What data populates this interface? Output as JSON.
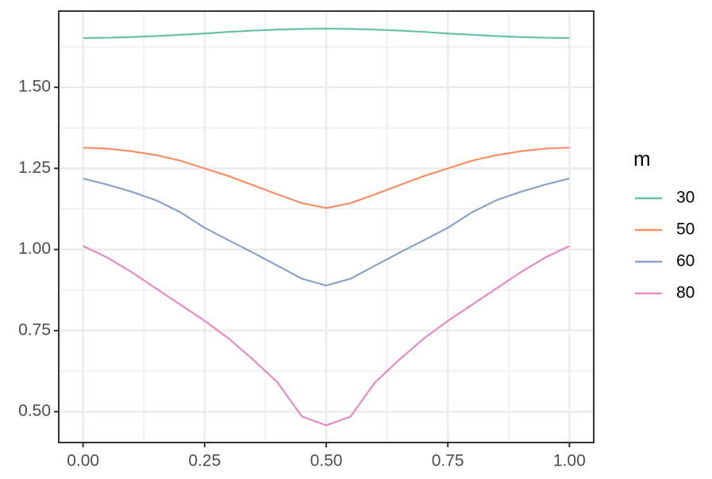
{
  "chart_data": {
    "type": "line",
    "x": [
      0,
      0.05,
      0.1,
      0.15,
      0.2,
      0.25,
      0.3,
      0.35,
      0.4,
      0.45,
      0.5,
      0.55,
      0.6,
      0.65,
      0.7,
      0.75,
      0.8,
      0.85,
      0.9,
      0.95,
      1
    ],
    "series": [
      {
        "name": "30",
        "color": "#66c2a5",
        "values": [
          1.652,
          1.653,
          1.655,
          1.658,
          1.662,
          1.666,
          1.671,
          1.675,
          1.678,
          1.68,
          1.681,
          1.68,
          1.678,
          1.675,
          1.671,
          1.666,
          1.662,
          1.658,
          1.655,
          1.653,
          1.652
        ]
      },
      {
        "name": "50",
        "color": "#fc8d62",
        "values": [
          1.314,
          1.311,
          1.303,
          1.291,
          1.274,
          1.25,
          1.226,
          1.198,
          1.17,
          1.143,
          1.128,
          1.143,
          1.17,
          1.198,
          1.226,
          1.25,
          1.274,
          1.291,
          1.303,
          1.311,
          1.314
        ]
      },
      {
        "name": "60",
        "color": "#8da0cb",
        "values": [
          1.219,
          1.2,
          1.178,
          1.152,
          1.115,
          1.067,
          1.028,
          0.99,
          0.95,
          0.91,
          0.889,
          0.91,
          0.95,
          0.99,
          1.028,
          1.067,
          1.115,
          1.152,
          1.178,
          1.2,
          1.219
        ]
      },
      {
        "name": "80",
        "color": "#e78ac3",
        "values": [
          1.011,
          0.975,
          0.93,
          0.88,
          0.83,
          0.78,
          0.725,
          0.66,
          0.59,
          0.485,
          0.458,
          0.485,
          0.59,
          0.66,
          0.725,
          0.78,
          0.83,
          0.88,
          0.93,
          0.975,
          1.011
        ]
      }
    ],
    "legend_title": "m",
    "xlim": [
      -0.05,
      1.05
    ],
    "ylim": [
      0.405,
      1.735
    ],
    "xticks": [
      {
        "value": 0,
        "label": "0.00"
      },
      0.25,
      {
        "value": 0.5,
        "label": "0.50"
      },
      0.75,
      {
        "value": 1,
        "label": "1.00"
      }
    ],
    "yticks": [
      {
        "value": 0.5,
        "label": "0.50"
      },
      0.75,
      {
        "value": 1,
        "label": "1.00"
      },
      1.25,
      {
        "value": 1.5,
        "label": "1.50"
      }
    ],
    "grid": true
  }
}
